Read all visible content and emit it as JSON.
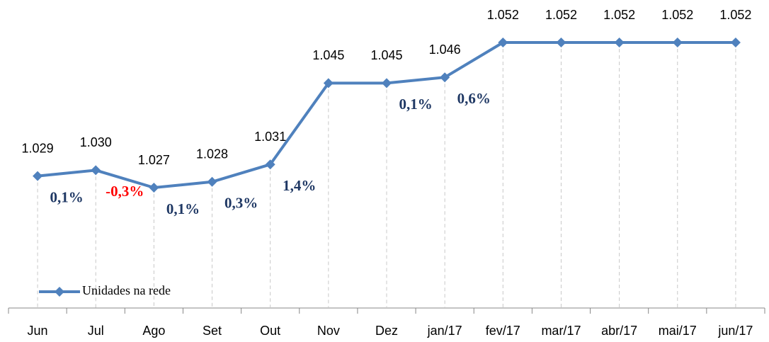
{
  "chart_data": {
    "type": "line",
    "categories": [
      "Jun",
      "Jul",
      "Ago",
      "Set",
      "Out",
      "Nov",
      "Dez",
      "jan/17",
      "fev/17",
      "mar/17",
      "abr/17",
      "mai/17",
      "jun/17"
    ],
    "series": [
      {
        "name": "Unidades na rede",
        "color": "#4f81bd",
        "values": [
          1029,
          1030,
          1027,
          1028,
          1031,
          1045,
          1045,
          1046,
          1052,
          1052,
          1052,
          1052,
          1052
        ],
        "value_labels": [
          "1.029",
          "1.030",
          "1.027",
          "1.028",
          "1.031",
          "1.045",
          "1.045",
          "1.046",
          "1.052",
          "1.052",
          "1.052",
          "1.052",
          "1.052"
        ]
      }
    ],
    "annotations": [
      {
        "text": "0,1%",
        "color": "#1f3864"
      },
      {
        "text": "-0,3%",
        "color": "#ff0000"
      },
      {
        "text": "0,1%",
        "color": "#1f3864"
      },
      {
        "text": "0,3%",
        "color": "#1f3864"
      },
      {
        "text": "1,4%",
        "color": "#1f3864"
      },
      null,
      {
        "text": "0,1%",
        "color": "#1f3864"
      },
      {
        "text": "0,6%",
        "color": "#1f3864"
      },
      null,
      null,
      null,
      null
    ],
    "legend": "lower left"
  }
}
